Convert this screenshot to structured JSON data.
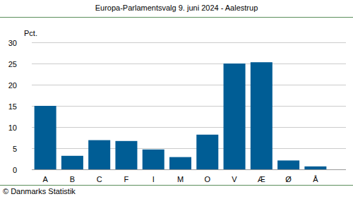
{
  "chart_data": {
    "type": "bar",
    "title": "Europa-Parlamentsvalg 9. juni 2024 - Aalestrup",
    "y_label": "Pct.",
    "source": "© Danmarks Statistik",
    "categories": [
      "A",
      "B",
      "C",
      "F",
      "I",
      "M",
      "O",
      "V",
      "Æ",
      "Ø",
      "Å"
    ],
    "values": [
      15.0,
      3.2,
      6.9,
      6.7,
      4.7,
      2.9,
      8.2,
      25.0,
      25.3,
      2.1,
      0.7
    ],
    "color": "#005d95",
    "ylim": [
      0,
      30
    ],
    "yticks": [
      0,
      5,
      10,
      15,
      20,
      25,
      30
    ],
    "grid": true
  }
}
